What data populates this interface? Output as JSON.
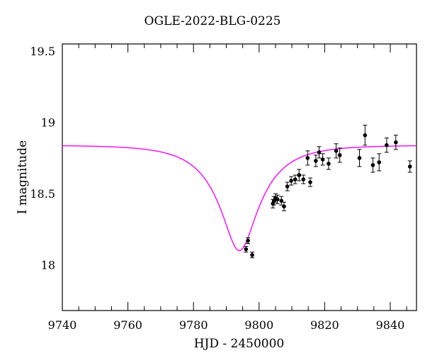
{
  "chart_data": {
    "type": "scatter",
    "title": "OGLE-2022-BLG-0225",
    "xlabel": "HJD - 2450000",
    "ylabel": "I magnitude",
    "xlim": [
      9740,
      9848
    ],
    "ylim": [
      19.55,
      17.68
    ],
    "y_inverted": true,
    "grid": false,
    "x_ticks": [
      "9740",
      "9760",
      "9780",
      "9800",
      "9820",
      "9840"
    ],
    "y_ticks": [
      "18",
      "18.5",
      "19",
      "19.5"
    ],
    "model_color": "#ff00ff",
    "point_color": "#000000",
    "model_curve": {
      "t0": 9794.0,
      "u0": 0.33,
      "tE": 14.5,
      "baseline_mag": 18.84,
      "peak_mag": 18.1
    },
    "points": [
      {
        "x": 9796.0,
        "y": 18.11,
        "err": 0.02
      },
      {
        "x": 9796.6,
        "y": 18.17,
        "err": 0.02
      },
      {
        "x": 9797.9,
        "y": 18.07,
        "err": 0.02
      },
      {
        "x": 9804.2,
        "y": 18.43,
        "err": 0.03
      },
      {
        "x": 9804.5,
        "y": 18.45,
        "err": 0.03
      },
      {
        "x": 9805.0,
        "y": 18.47,
        "err": 0.03
      },
      {
        "x": 9805.6,
        "y": 18.46,
        "err": 0.03
      },
      {
        "x": 9806.8,
        "y": 18.45,
        "err": 0.03
      },
      {
        "x": 9807.6,
        "y": 18.41,
        "err": 0.03
      },
      {
        "x": 9808.6,
        "y": 18.55,
        "err": 0.03
      },
      {
        "x": 9809.8,
        "y": 18.59,
        "err": 0.03
      },
      {
        "x": 9811.0,
        "y": 18.6,
        "err": 0.03
      },
      {
        "x": 9812.2,
        "y": 18.63,
        "err": 0.04
      },
      {
        "x": 9813.5,
        "y": 18.6,
        "err": 0.03
      },
      {
        "x": 9814.8,
        "y": 18.75,
        "err": 0.05
      },
      {
        "x": 9815.6,
        "y": 18.58,
        "err": 0.03
      },
      {
        "x": 9817.3,
        "y": 18.73,
        "err": 0.04
      },
      {
        "x": 9818.3,
        "y": 18.79,
        "err": 0.04
      },
      {
        "x": 9819.4,
        "y": 18.74,
        "err": 0.04
      },
      {
        "x": 9821.2,
        "y": 18.71,
        "err": 0.04
      },
      {
        "x": 9823.5,
        "y": 18.8,
        "err": 0.05
      },
      {
        "x": 9824.6,
        "y": 18.77,
        "err": 0.05
      },
      {
        "x": 9830.6,
        "y": 18.75,
        "err": 0.06
      },
      {
        "x": 9832.3,
        "y": 18.91,
        "err": 0.07
      },
      {
        "x": 9834.7,
        "y": 18.7,
        "err": 0.05
      },
      {
        "x": 9836.6,
        "y": 18.72,
        "err": 0.06
      },
      {
        "x": 9838.9,
        "y": 18.84,
        "err": 0.05
      },
      {
        "x": 9841.7,
        "y": 18.86,
        "err": 0.05
      },
      {
        "x": 9846.0,
        "y": 18.69,
        "err": 0.04
      }
    ]
  }
}
